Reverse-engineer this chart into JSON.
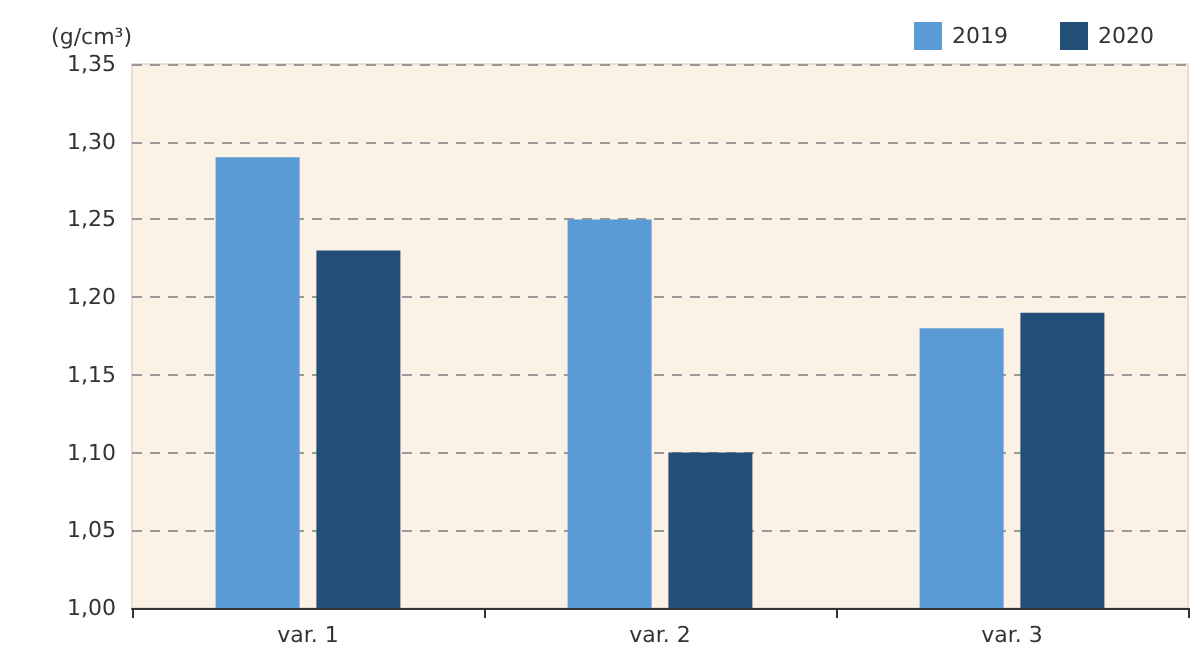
{
  "chart_data": {
    "type": "bar",
    "ylabel": "(g/cm³)",
    "categories": [
      "var. 1",
      "var. 2",
      "var. 3"
    ],
    "series": [
      {
        "name": "2019",
        "color": "#5b9bd5",
        "values": [
          1.29,
          1.25,
          1.18
        ]
      },
      {
        "name": "2020",
        "color": "#234e78",
        "values": [
          1.23,
          1.1,
          1.19
        ]
      }
    ],
    "ylim": [
      1.0,
      1.35
    ],
    "yticks": [
      {
        "value": 1.0,
        "label": "1,00"
      },
      {
        "value": 1.05,
        "label": "1,05"
      },
      {
        "value": 1.1,
        "label": "1,10"
      },
      {
        "value": 1.15,
        "label": "1,15"
      },
      {
        "value": 1.2,
        "label": "1,20"
      },
      {
        "value": 1.25,
        "label": "1,25"
      },
      {
        "value": 1.3,
        "label": "1,30"
      },
      {
        "value": 1.35,
        "label": "1,35"
      }
    ],
    "grid": "y",
    "legend": "top right"
  }
}
